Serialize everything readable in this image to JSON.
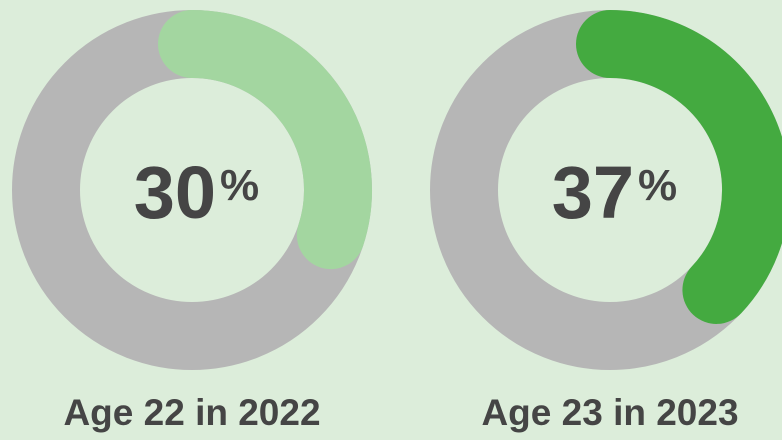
{
  "chart_data": [
    {
      "type": "donut",
      "values": [
        30
      ],
      "unit": "%",
      "label": "Age 22 in 2022",
      "color": "#a3d6a0",
      "track_color": "#b6b6b6",
      "ylim": [
        0,
        100
      ]
    },
    {
      "type": "donut",
      "values": [
        37
      ],
      "unit": "%",
      "label": "Age 23 in 2023",
      "color": "#44aa40",
      "track_color": "#b6b6b6",
      "ylim": [
        0,
        100
      ]
    }
  ]
}
